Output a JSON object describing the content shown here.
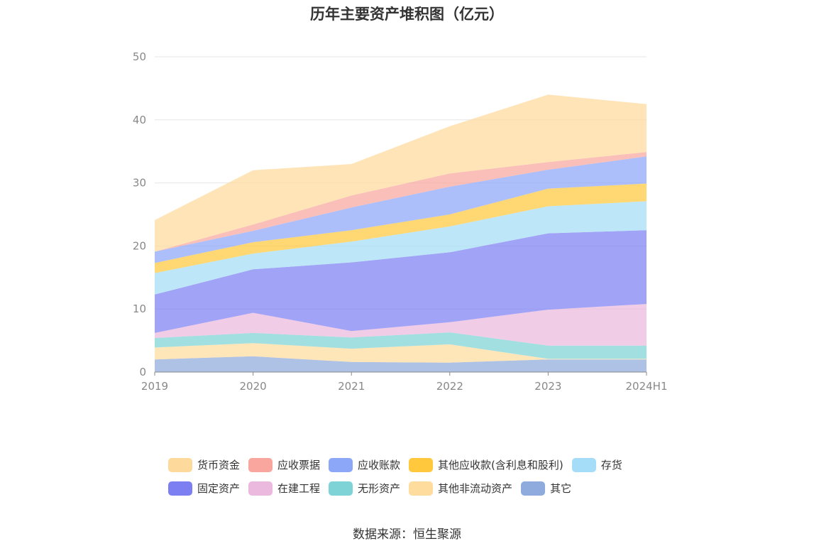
{
  "title": "历年主要资产堆积图（亿元）",
  "source": "数据来源：恒生聚源",
  "chart_data": {
    "type": "area",
    "stacked": true,
    "title": "历年主要资产堆积图（亿元）",
    "categories": [
      "2019",
      "2020",
      "2021",
      "2022",
      "2023",
      "2024H1"
    ],
    "ylim": [
      0,
      50
    ],
    "yticks": [
      0,
      10,
      20,
      30,
      40,
      50
    ],
    "grid": true,
    "legend_position": "bottom",
    "series": [
      {
        "name": "其它",
        "color": "#8faadc",
        "values": [
          2.0,
          2.5,
          1.6,
          1.5,
          2.0,
          2.0
        ]
      },
      {
        "name": "其他非流动资产",
        "color": "#fddc9e",
        "values": [
          1.9,
          2.1,
          2.1,
          2.9,
          0.1,
          0.1
        ]
      },
      {
        "name": "无形资产",
        "color": "#7ed3d6",
        "values": [
          1.5,
          1.6,
          1.8,
          1.9,
          2.1,
          2.1
        ]
      },
      {
        "name": "在建工程",
        "color": "#eab9dd",
        "values": [
          0.8,
          3.2,
          1.0,
          1.6,
          5.7,
          6.6
        ]
      },
      {
        "name": "固定资产",
        "color": "#7c7ff2",
        "values": [
          6.1,
          6.9,
          10.9,
          11.1,
          12.1,
          11.7
        ]
      },
      {
        "name": "存货",
        "color": "#a5dcf7",
        "values": [
          3.4,
          2.5,
          3.3,
          4.1,
          4.3,
          4.6
        ]
      },
      {
        "name": "其他应收款(含利息和股利)",
        "color": "#ffc83d",
        "values": [
          1.6,
          1.8,
          1.8,
          1.9,
          2.8,
          2.8
        ]
      },
      {
        "name": "应收账款",
        "color": "#8ca6f8",
        "values": [
          1.8,
          1.8,
          3.6,
          4.4,
          3.0,
          4.3
        ]
      },
      {
        "name": "应收票据",
        "color": "#f9a69e",
        "values": [
          0.0,
          1.0,
          1.9,
          2.1,
          1.2,
          0.7
        ]
      },
      {
        "name": "货币资金",
        "color": "#fdd99b",
        "values": [
          5.0,
          8.6,
          5.0,
          7.5,
          10.7,
          7.6
        ]
      }
    ]
  },
  "legend": {
    "rows": [
      [
        {
          "label": "货币资金",
          "color": "#fdd99b"
        },
        {
          "label": "应收票据",
          "color": "#f9a69e"
        },
        {
          "label": "应收账款",
          "color": "#8ca6f8"
        },
        {
          "label": "其他应收款(含利息和股利)",
          "color": "#ffc83d"
        },
        {
          "label": "存货",
          "color": "#a5dcf7"
        }
      ],
      [
        {
          "label": "固定资产",
          "color": "#7c7ff2"
        },
        {
          "label": "在建工程",
          "color": "#eab9dd"
        },
        {
          "label": "无形资产",
          "color": "#7ed3d6"
        },
        {
          "label": "其他非流动资产",
          "color": "#fddc9e"
        },
        {
          "label": "其它",
          "color": "#8faadc"
        }
      ]
    ]
  }
}
